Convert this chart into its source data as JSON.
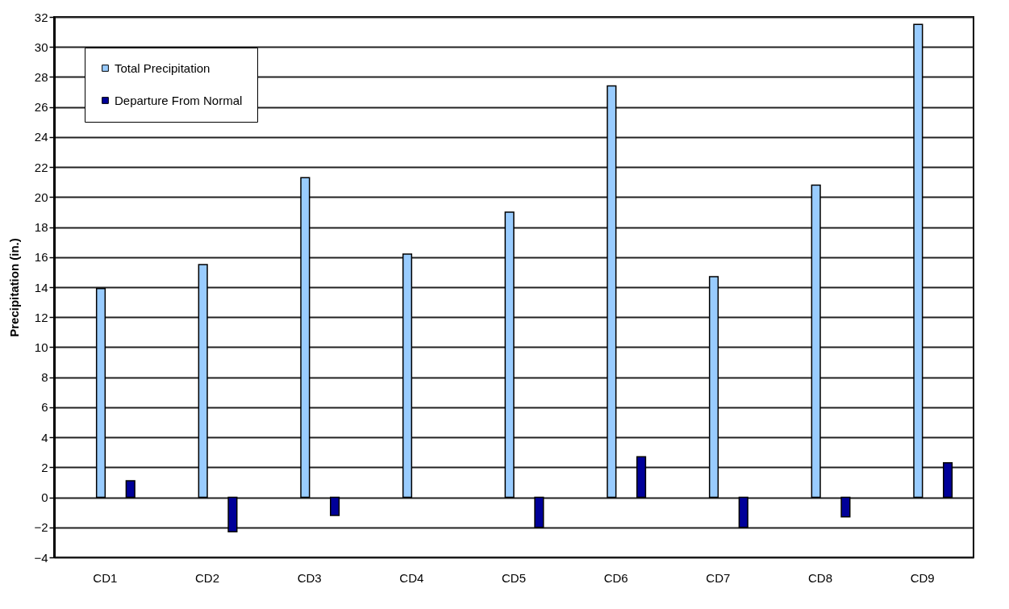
{
  "chart_data": {
    "type": "bar",
    "ylabel": "Precipitation (in.)",
    "categories": [
      "CD1",
      "CD2",
      "CD3",
      "CD4",
      "CD5",
      "CD6",
      "CD7",
      "CD8",
      "CD9"
    ],
    "series": [
      {
        "name": "Total Precipitation",
        "color": "#99ccff",
        "values": [
          13.9,
          15.5,
          21.3,
          16.2,
          19.0,
          27.4,
          14.7,
          20.8,
          31.5
        ]
      },
      {
        "name": "Departure From Normal",
        "color": "#000099",
        "values": [
          1.1,
          -2.3,
          -1.2,
          null,
          -2.0,
          2.7,
          -2.0,
          -1.3,
          2.3
        ]
      }
    ],
    "ylim": [
      -4,
      32
    ],
    "yticks": [
      -4,
      -2,
      0,
      2,
      4,
      6,
      8,
      10,
      12,
      14,
      16,
      18,
      20,
      22,
      24,
      26,
      28,
      30,
      32
    ],
    "grid": "y",
    "legend": "top left"
  }
}
